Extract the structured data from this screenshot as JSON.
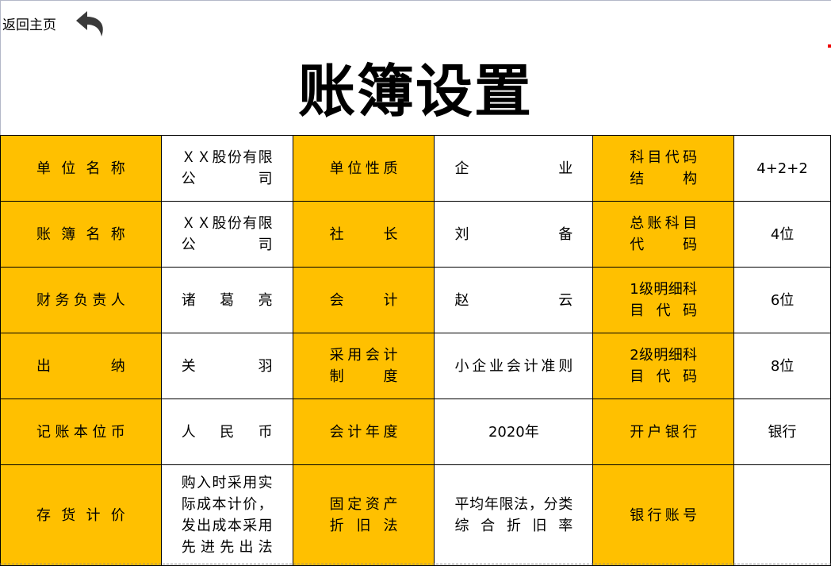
{
  "nav": {
    "home_label": "返回主页",
    "back_icon": "undo-arrow-icon"
  },
  "title": "账簿设置",
  "colors": {
    "label_bg": "#FFC000",
    "value_bg": "#FFFFFF"
  },
  "rows": [
    [
      {
        "label": "单位名称",
        "value": "ＸＸ股份有限公司"
      },
      {
        "label": "单位性质",
        "value": "企业"
      },
      {
        "label": "科目代码结构",
        "value": "4+2+2"
      }
    ],
    [
      {
        "label": "账簿名称",
        "value": "ＸＸ股份有限公司"
      },
      {
        "label": "社长",
        "value": "刘备"
      },
      {
        "label": "总账科目代码",
        "value": "4位"
      }
    ],
    [
      {
        "label": "财务负责人",
        "value": "诸葛亮"
      },
      {
        "label": "会计",
        "value": "赵云"
      },
      {
        "label": "1级明细科目代码",
        "value": "6位"
      }
    ],
    [
      {
        "label": "出纳",
        "value": "关羽"
      },
      {
        "label": "采用会计制度",
        "value": "小企业会计准则"
      },
      {
        "label": "2级明细科目代码",
        "value": "8位"
      }
    ],
    [
      {
        "label": "记账本位币",
        "value": "人民币"
      },
      {
        "label": "会计年度",
        "value": "2020年"
      },
      {
        "label": "开户银行",
        "value": "银行"
      }
    ],
    [
      {
        "label": "存货计价",
        "value": "购入时采用实际成本计价，发出成本采用先进先出法"
      },
      {
        "label": "固定资产折旧法",
        "value": "平均年限法，分类综合折旧率"
      },
      {
        "label": "银行账号",
        "value": ""
      }
    ]
  ]
}
